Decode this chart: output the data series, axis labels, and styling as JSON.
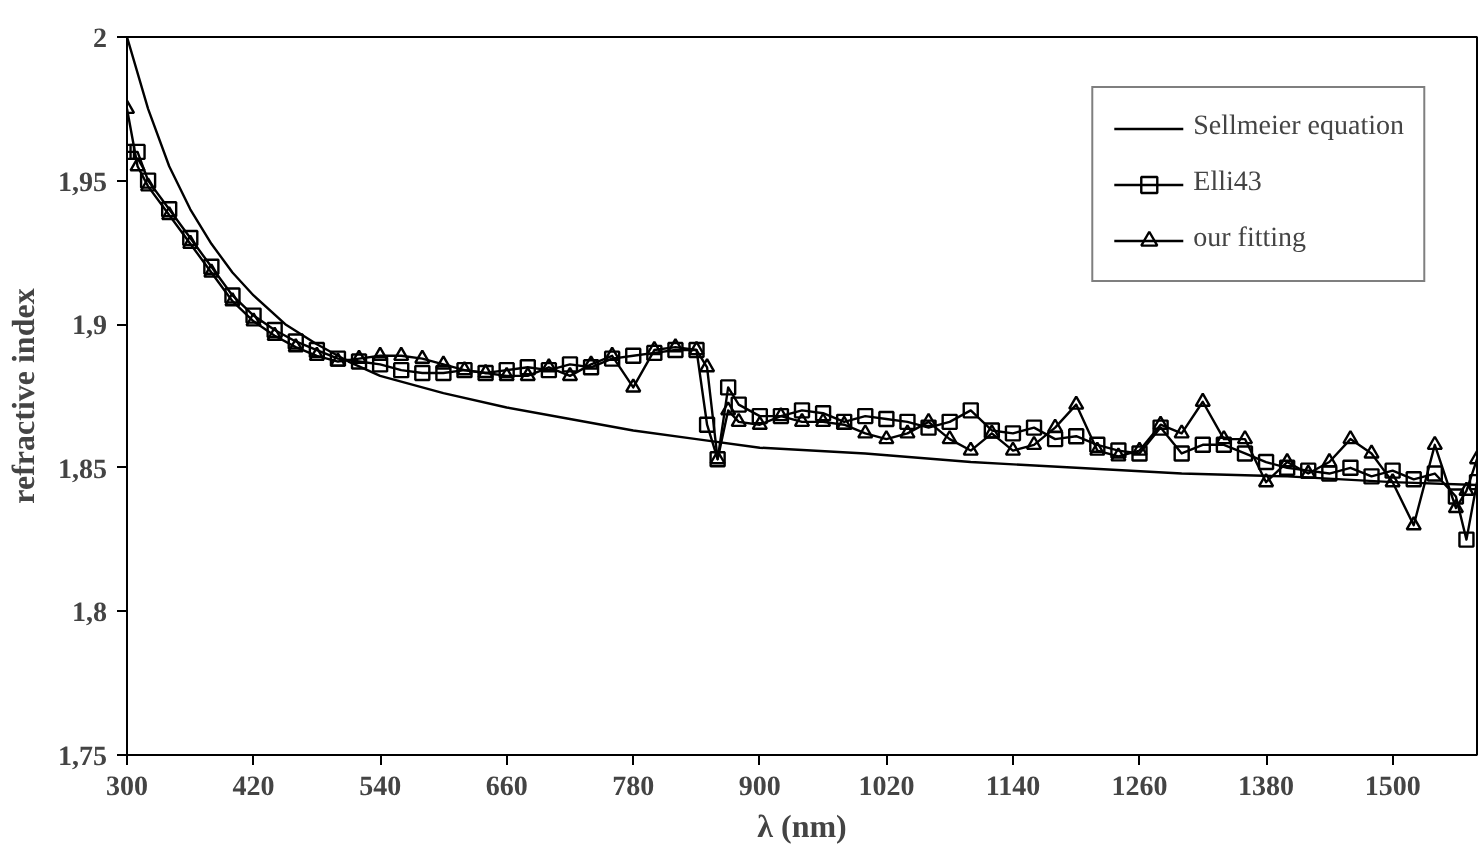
{
  "chart_data": {
    "type": "line",
    "xlabel": "λ (nm)",
    "ylabel": "refractive index",
    "xlim": [
      300,
      1580
    ],
    "ylim": [
      1.75,
      2
    ],
    "xticks": [
      300,
      420,
      540,
      660,
      780,
      900,
      1020,
      1140,
      1260,
      1380,
      1500
    ],
    "yticks": [
      {
        "value": 1.75,
        "label": "1,75"
      },
      {
        "value": 1.8,
        "label": "1,8"
      },
      {
        "value": 1.85,
        "label": "1,85"
      },
      {
        "value": 1.9,
        "label": "1,9"
      },
      {
        "value": 1.95,
        "label": "1,95"
      },
      {
        "value": 2,
        "label": "2"
      }
    ],
    "legend": "top right",
    "grid": false,
    "series": [
      {
        "name": "Sellmeier equation",
        "color": "#000000",
        "marker": "none",
        "x": [
          300,
          320,
          340,
          360,
          380,
          400,
          420,
          450,
          480,
          510,
          540,
          600,
          660,
          720,
          780,
          840,
          900,
          1000,
          1100,
          1200,
          1300,
          1400,
          1500,
          1580
        ],
        "values": [
          2.0,
          1.975,
          1.955,
          1.94,
          1.928,
          1.918,
          1.91,
          1.9,
          1.893,
          1.887,
          1.882,
          1.876,
          1.871,
          1.867,
          1.863,
          1.86,
          1.857,
          1.855,
          1.852,
          1.85,
          1.848,
          1.847,
          1.845,
          1.844
        ]
      },
      {
        "name": "Elli43",
        "color": "#000000",
        "marker": "square",
        "x": [
          300,
          310,
          320,
          340,
          360,
          380,
          400,
          420,
          440,
          460,
          480,
          500,
          520,
          540,
          560,
          580,
          600,
          620,
          640,
          660,
          680,
          700,
          720,
          740,
          760,
          780,
          800,
          820,
          840,
          850,
          860,
          870,
          880,
          900,
          920,
          940,
          960,
          980,
          1000,
          1020,
          1040,
          1060,
          1080,
          1100,
          1120,
          1140,
          1160,
          1180,
          1200,
          1220,
          1240,
          1260,
          1280,
          1300,
          1320,
          1340,
          1360,
          1380,
          1400,
          1420,
          1440,
          1460,
          1480,
          1500,
          1520,
          1540,
          1560,
          1570,
          1580
        ],
        "values": [
          1.96,
          1.96,
          1.95,
          1.94,
          1.93,
          1.92,
          1.91,
          1.903,
          1.898,
          1.894,
          1.891,
          1.888,
          1.887,
          1.886,
          1.884,
          1.883,
          1.883,
          1.884,
          1.883,
          1.884,
          1.885,
          1.884,
          1.886,
          1.885,
          1.888,
          1.889,
          1.89,
          1.891,
          1.891,
          1.865,
          1.853,
          1.878,
          1.872,
          1.868,
          1.868,
          1.87,
          1.869,
          1.866,
          1.868,
          1.867,
          1.866,
          1.864,
          1.866,
          1.87,
          1.863,
          1.862,
          1.864,
          1.86,
          1.861,
          1.858,
          1.856,
          1.855,
          1.864,
          1.855,
          1.858,
          1.858,
          1.855,
          1.852,
          1.85,
          1.849,
          1.848,
          1.85,
          1.847,
          1.849,
          1.846,
          1.848,
          1.84,
          1.825,
          1.845
        ]
      },
      {
        "name": "our fitting",
        "color": "#000000",
        "marker": "triangle",
        "x": [
          300,
          310,
          320,
          340,
          360,
          380,
          400,
          420,
          440,
          460,
          480,
          500,
          520,
          540,
          560,
          580,
          600,
          620,
          640,
          660,
          680,
          700,
          720,
          740,
          760,
          780,
          800,
          820,
          840,
          850,
          860,
          870,
          880,
          900,
          920,
          940,
          960,
          980,
          1000,
          1020,
          1040,
          1060,
          1080,
          1100,
          1120,
          1140,
          1160,
          1180,
          1200,
          1220,
          1240,
          1260,
          1280,
          1300,
          1320,
          1340,
          1360,
          1380,
          1400,
          1420,
          1440,
          1460,
          1480,
          1500,
          1520,
          1540,
          1560,
          1570,
          1580
        ],
        "values": [
          1.975,
          1.955,
          1.948,
          1.938,
          1.928,
          1.918,
          1.908,
          1.901,
          1.896,
          1.892,
          1.889,
          1.887,
          1.888,
          1.889,
          1.889,
          1.888,
          1.886,
          1.884,
          1.883,
          1.882,
          1.882,
          1.885,
          1.882,
          1.886,
          1.889,
          1.878,
          1.891,
          1.892,
          1.891,
          1.885,
          1.853,
          1.87,
          1.866,
          1.865,
          1.868,
          1.866,
          1.866,
          1.865,
          1.862,
          1.86,
          1.862,
          1.866,
          1.86,
          1.856,
          1.862,
          1.856,
          1.858,
          1.864,
          1.872,
          1.856,
          1.854,
          1.856,
          1.865,
          1.862,
          1.873,
          1.86,
          1.86,
          1.845,
          1.852,
          1.848,
          1.852,
          1.86,
          1.855,
          1.845,
          1.83,
          1.858,
          1.836,
          1.842,
          1.853
        ]
      }
    ]
  }
}
